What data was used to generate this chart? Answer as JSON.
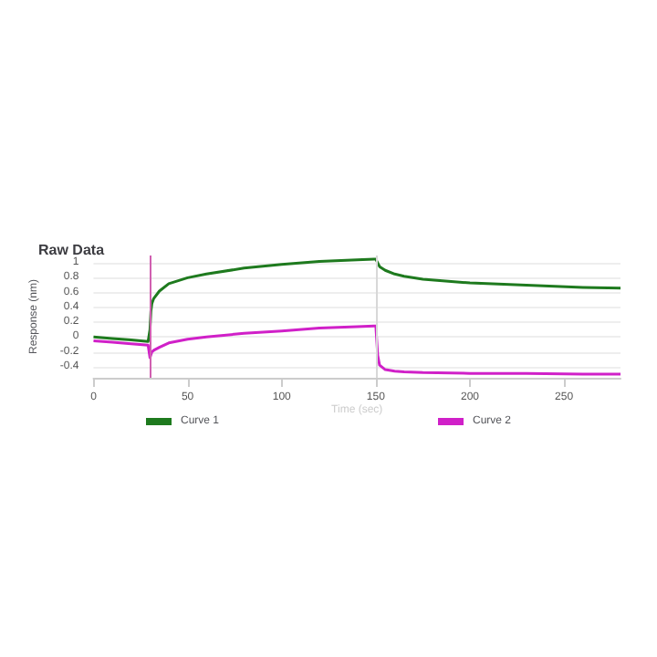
{
  "chart_data": {
    "type": "line",
    "title": "Raw Data",
    "xlabel": "Time (sec)",
    "ylabel": "Response (nm)",
    "xlim": [
      0,
      280
    ],
    "xticks": [
      0,
      50,
      100,
      150,
      200,
      250
    ],
    "ylim": [
      -0.55,
      1.1
    ],
    "yticks": [
      -0.4,
      -0.2,
      0,
      0.2,
      0.4,
      0.6,
      0.8,
      1.0
    ],
    "grid": "y",
    "legend": "bottom",
    "marker": "none",
    "line_style": "solid",
    "ref_lines": [
      {
        "axis": "x",
        "value": 30,
        "color": "#d05fb0"
      },
      {
        "axis": "x",
        "value": 150,
        "color": "#d8d8d8"
      }
    ],
    "x": [
      0,
      10,
      20,
      29,
      30,
      30.5,
      31,
      32,
      35,
      40,
      50,
      60,
      80,
      100,
      120,
      140,
      149,
      150,
      151,
      152,
      155,
      160,
      165,
      175,
      200,
      230,
      260,
      280
    ],
    "series": [
      {
        "name": "Curve 1",
        "color": "#1e7a1e",
        "values": [
          0.0,
          -0.02,
          -0.04,
          -0.06,
          0.1,
          0.35,
          0.45,
          0.52,
          0.62,
          0.72,
          0.8,
          0.85,
          0.93,
          0.98,
          1.02,
          1.04,
          1.05,
          1.05,
          1.0,
          0.95,
          0.9,
          0.85,
          0.82,
          0.78,
          0.73,
          0.7,
          0.67,
          0.66
        ]
      },
      {
        "name": "Curve 2",
        "color": "#d020c8",
        "values": [
          -0.05,
          -0.07,
          -0.09,
          -0.11,
          -0.28,
          -0.24,
          -0.2,
          -0.18,
          -0.14,
          -0.08,
          -0.03,
          0.0,
          0.05,
          0.08,
          0.12,
          0.14,
          0.15,
          0.15,
          -0.25,
          -0.38,
          -0.44,
          -0.46,
          -0.47,
          -0.48,
          -0.49,
          -0.49,
          -0.5,
          -0.5
        ]
      }
    ]
  }
}
